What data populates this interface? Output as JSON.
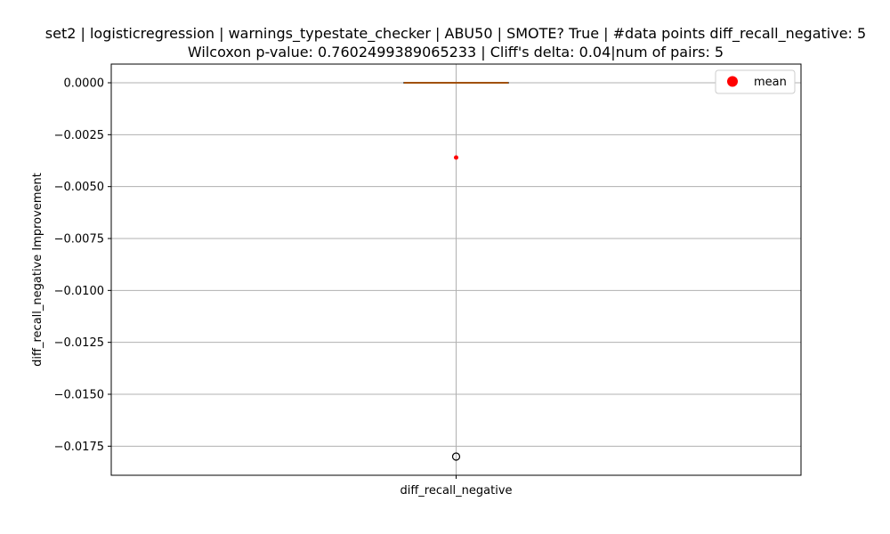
{
  "chart_data": {
    "type": "box",
    "title": [
      "set2 | logisticregression | warnings_typestate_checker | ABU50 | SMOTE? True | #data points diff_recall_negative: 5",
      "Wilcoxon p-value: 0.7602499389065233 | Cliff's delta: 0.04|num of pairs: 5"
    ],
    "xlabel": "",
    "ylabel": "diff_recall_negative Improvement",
    "categories": [
      "diff_recall_negative"
    ],
    "ylim": [
      -0.0189,
      0.0009
    ],
    "yticks": [
      0.0,
      -0.0025,
      -0.005,
      -0.0075,
      -0.01,
      -0.0125,
      -0.015,
      -0.0175
    ],
    "ytick_labels": [
      "0.0000",
      "−0.0025",
      "−0.0050",
      "−0.0075",
      "−0.0100",
      "−0.0125",
      "−0.0150",
      "−0.0175"
    ],
    "grid": true,
    "legend": {
      "position": "top-right",
      "entries": [
        "mean"
      ]
    },
    "boxes": [
      {
        "category": "diff_recall_negative",
        "whisker_low": 0.0,
        "q1": 0.0,
        "median": 0.0,
        "q3": 0.0,
        "whisker_high": 0.0,
        "mean": -0.0036,
        "outliers": [
          -0.018
        ]
      }
    ],
    "colors": {
      "box": "#000000",
      "median": "#ff7f0e",
      "mean": "#ff0000",
      "grid": "#b0b0b0",
      "outlier": "#000000"
    }
  }
}
